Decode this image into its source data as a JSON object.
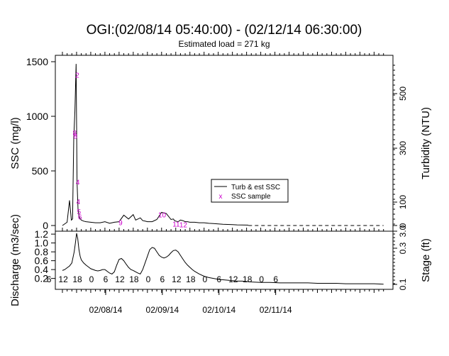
{
  "chart_data": {
    "type": "line",
    "title": "OGI:(02/08/14 05:40:00) - (02/12/14 06:30:00)",
    "subtitle": "Estimated load = 271 kg",
    "top_panel": {
      "ylabel_left": "SSC (mg/l)",
      "ylabel_right": "Turbidity (NTU)",
      "yticks_left": [
        "0",
        "500",
        "1000",
        "1500"
      ],
      "yticks_right": [
        "0",
        "100",
        "300",
        "500"
      ],
      "ylim": [
        0,
        1500
      ],
      "series": [
        {
          "name": "Turb & est SSC",
          "x_hours": [
            0,
            2,
            3,
            3.8,
            4.3,
            4.8,
            5.3,
            5.8,
            6.2,
            6.6,
            7,
            7.3,
            7.6,
            8,
            8.5,
            9,
            10,
            12,
            14,
            16,
            18,
            20,
            22,
            24,
            26,
            28,
            30,
            31,
            32,
            33,
            34,
            35,
            36,
            38,
            40,
            42,
            44,
            46,
            47,
            47.5,
            48,
            49,
            50,
            51,
            52,
            53,
            54,
            56,
            58,
            60,
            62,
            64,
            66,
            68,
            70,
            72,
            74,
            76,
            78,
            78.8
          ],
          "values": [
            0,
            30,
            230,
            50,
            60,
            800,
            1050,
            1480,
            400,
            150,
            90,
            70,
            60,
            50,
            45,
            40,
            35,
            30,
            25,
            25,
            35,
            20,
            30,
            35,
            95,
            60,
            100,
            50,
            60,
            70,
            45,
            40,
            35,
            35,
            55,
            120,
            110,
            55,
            60,
            45,
            40,
            35,
            50,
            45,
            35,
            35,
            30,
            30,
            25,
            25,
            20,
            18,
            15,
            12,
            10,
            8,
            6,
            5,
            4,
            3
          ]
        }
      ],
      "dashed_extension": {
        "from_hour": 78.8,
        "to_hour": 136,
        "value": 0
      },
      "samples": {
        "name": "SSC sample",
        "points": [
          {
            "x_hour": 5.2,
            "value": 850,
            "label": "8"
          },
          {
            "x_hour": 5.5,
            "value": 820,
            "label": "8"
          },
          {
            "x_hour": 6.3,
            "value": 1380,
            "label": "2"
          },
          {
            "x_hour": 6.5,
            "value": 400,
            "label": "4"
          },
          {
            "x_hour": 6.7,
            "value": 220,
            "label": "4"
          },
          {
            "x_hour": 7.0,
            "value": 130,
            "label": "5"
          },
          {
            "x_hour": 7.4,
            "value": 80,
            "label": "6"
          },
          {
            "x_hour": 24.6,
            "value": 30,
            "label": "9"
          },
          {
            "x_hour": 42.2,
            "value": 100,
            "label": "10"
          },
          {
            "x_hour": 48.2,
            "value": 15,
            "label": "11"
          },
          {
            "x_hour": 51.2,
            "value": 10,
            "label": "12"
          }
        ]
      },
      "legend": {
        "placement": "center-right",
        "items": [
          "Turb & est SSC",
          "SSC sample"
        ]
      }
    },
    "bottom_panel": {
      "ylabel_left": "Discharge (m3/sec)",
      "ylabel_right": "Stage (ft)",
      "yticks_left": [
        "0.2",
        "0.4",
        "0.6",
        "0.8",
        "1.0",
        "1.2"
      ],
      "yticks_right": [
        "0.1",
        "0.3",
        "3.0"
      ],
      "ylim": [
        0.05,
        1.25
      ],
      "series": [
        {
          "name": "Discharge",
          "x_hours": [
            0,
            1,
            2,
            3,
            4,
            5,
            5.5,
            6,
            6.5,
            7,
            7.5,
            8,
            9,
            10,
            11,
            12,
            13,
            14,
            15,
            16,
            17,
            18,
            19,
            20,
            21,
            22,
            23,
            24,
            25,
            26,
            27,
            28,
            29,
            30,
            31,
            32,
            33,
            34,
            35,
            36,
            37,
            38,
            39,
            40,
            41,
            42,
            43,
            44,
            45,
            46,
            47,
            48,
            49,
            50,
            51,
            52,
            53,
            54,
            55,
            56,
            58,
            60,
            62,
            64,
            66,
            68,
            70,
            72,
            74,
            76,
            78,
            80,
            84,
            88,
            92,
            96,
            100,
            104,
            108,
            112,
            116,
            120,
            124,
            128,
            132,
            136
          ],
          "values": [
            0.38,
            0.4,
            0.44,
            0.48,
            0.55,
            0.8,
            1.0,
            1.22,
            1.1,
            0.85,
            0.7,
            0.62,
            0.55,
            0.5,
            0.46,
            0.42,
            0.4,
            0.38,
            0.37,
            0.38,
            0.4,
            0.4,
            0.36,
            0.32,
            0.3,
            0.35,
            0.5,
            0.63,
            0.65,
            0.6,
            0.52,
            0.45,
            0.4,
            0.38,
            0.35,
            0.32,
            0.3,
            0.4,
            0.55,
            0.7,
            0.85,
            0.9,
            0.88,
            0.8,
            0.72,
            0.68,
            0.66,
            0.68,
            0.72,
            0.78,
            0.83,
            0.84,
            0.8,
            0.72,
            0.64,
            0.56,
            0.5,
            0.45,
            0.4,
            0.36,
            0.3,
            0.25,
            0.22,
            0.2,
            0.18,
            0.17,
            0.16,
            0.15,
            0.14,
            0.14,
            0.13,
            0.12,
            0.11,
            0.11,
            0.1,
            0.1,
            0.1,
            0.1,
            0.09,
            0.09,
            0.09,
            0.08,
            0.08,
            0.08,
            0.08,
            0.07
          ]
        }
      ],
      "hour_labels": [
        "6",
        "12",
        "18",
        "0",
        "6",
        "12",
        "18",
        "0",
        "6",
        "12",
        "18",
        "0",
        "6",
        "12",
        "18",
        "0",
        "6"
      ]
    },
    "x_date_labels": [
      "02/08/14",
      "02/09/14",
      "02/10/14",
      "02/11/14"
    ],
    "xlim_hours": [
      -3,
      140
    ]
  }
}
